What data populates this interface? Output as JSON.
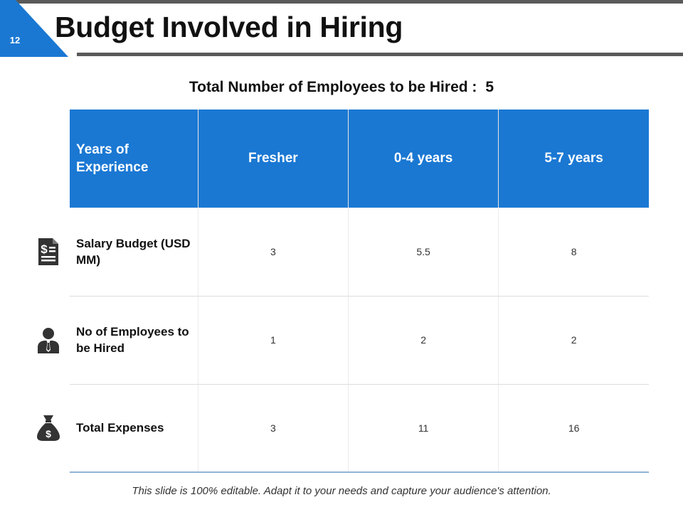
{
  "slide": {
    "number": "12",
    "title": "Budget Involved in Hiring",
    "accent_color": "#1a78d3"
  },
  "summary": {
    "label": "Total Number of Employees to be Hired :",
    "value": "5"
  },
  "table": {
    "headers": [
      "Years of Experience",
      "Fresher",
      "0-4 years",
      "5-7 years"
    ],
    "rows": [
      {
        "icon": "invoice-dollar-icon",
        "label": "Salary Budget (USD MM)",
        "values": [
          "3",
          "5.5",
          "8"
        ]
      },
      {
        "icon": "employee-icon",
        "label": "No of Employees to be Hired",
        "values": [
          "1",
          "2",
          "2"
        ]
      },
      {
        "icon": "money-bag-icon",
        "label": "Total Expenses",
        "values": [
          "3",
          "11",
          "16"
        ]
      }
    ]
  },
  "footer": {
    "note": "This slide is 100% editable. Adapt it to your needs and capture your audience's attention."
  }
}
